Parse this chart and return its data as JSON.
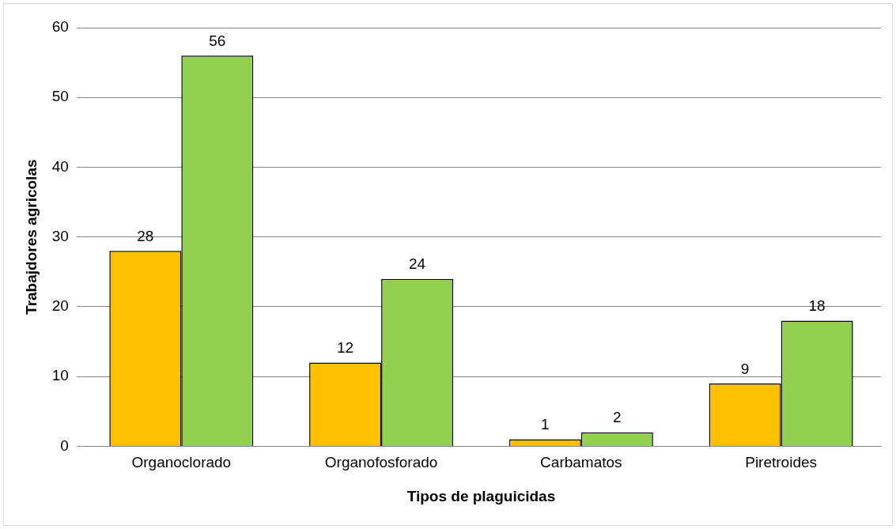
{
  "chart_data": {
    "type": "bar",
    "xlabel": "Tipos de plaguicidas",
    "ylabel": "Trabajdores agricolas",
    "categories": [
      "Organoclorado",
      "Organofosforado",
      "Carbamatos",
      "Piretroides"
    ],
    "series": [
      {
        "color": "#ffc000",
        "values": [
          28,
          12,
          1,
          9
        ]
      },
      {
        "color": "#92d050",
        "values": [
          56,
          24,
          2,
          18
        ]
      }
    ],
    "ylim": [
      0,
      60
    ],
    "yticks": [
      0,
      10,
      20,
      30,
      40,
      50,
      60
    ],
    "grid": "y",
    "legend": false,
    "data_labels": true
  }
}
